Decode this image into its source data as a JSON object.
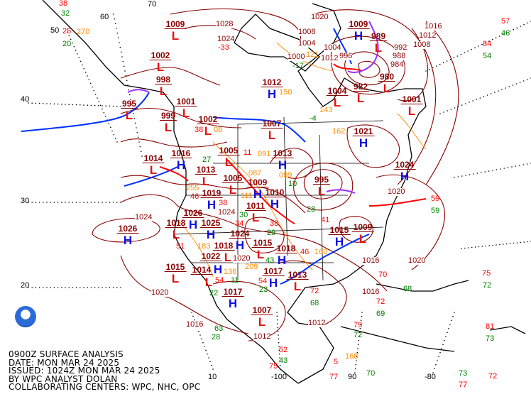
{
  "caption": {
    "line1": "0900Z SURFACE ANALYSIS",
    "line2": "DATE: MON MAR 24 2025",
    "line3": "ISSUED: 1024Z MON MAR 24 2025",
    "line4": "BY WPC ANALYST DOLAN",
    "line5": "COLLABORATING CENTERS: WPC, NHC, OPC"
  },
  "logo": {
    "text": "NOAA"
  },
  "colors": {
    "isobar": "#8b0000",
    "high": "#1010e0",
    "low": "#e81010",
    "cold_front": "#0030ff",
    "warm_front": "#ff0000",
    "occluded_front": "#9b30ff",
    "temperature": "#ff0000",
    "dewpoint": "#008000",
    "pressure_tendency": "#ff8c00"
  },
  "grid_labels": {
    "lat50": "50",
    "lat40": "40",
    "lat30": "30",
    "lat20": "20",
    "lat60": "60",
    "lat70": "70",
    "lon10": "10",
    "lon100": "-100",
    "lon90": "90",
    "lon80": "-80"
  },
  "centers": [
    {
      "type": "H",
      "value": "1026"
    },
    {
      "type": "L",
      "value": "1014"
    },
    {
      "type": "L",
      "value": "995"
    },
    {
      "type": "L",
      "value": "998"
    },
    {
      "type": "L",
      "value": "1001"
    },
    {
      "type": "L",
      "value": "999"
    },
    {
      "type": "L",
      "value": "1002"
    },
    {
      "type": "L",
      "value": "1005"
    },
    {
      "type": "L",
      "value": "1005"
    },
    {
      "type": "H",
      "value": "1009"
    },
    {
      "type": "H",
      "value": "1013"
    },
    {
      "type": "L",
      "value": "1013"
    },
    {
      "type": "H",
      "value": "1016"
    },
    {
      "type": "L",
      "value": "1011"
    },
    {
      "type": "H",
      "value": "1010"
    },
    {
      "type": "H",
      "value": "1026"
    },
    {
      "type": "L",
      "value": "1018"
    },
    {
      "type": "H",
      "value": "1025"
    },
    {
      "type": "H",
      "value": "1024"
    },
    {
      "type": "L",
      "value": "1018"
    },
    {
      "type": "H",
      "value": "1022"
    },
    {
      "type": "L",
      "value": "1015"
    },
    {
      "type": "H",
      "value": "1018"
    },
    {
      "type": "H",
      "value": "1017"
    },
    {
      "type": "L",
      "value": "1013"
    },
    {
      "type": "L",
      "value": "1015"
    },
    {
      "type": "L",
      "value": "1014"
    },
    {
      "type": "H",
      "value": "1017"
    },
    {
      "type": "L",
      "value": "1007"
    },
    {
      "type": "H",
      "value": "1015"
    },
    {
      "type": "L",
      "value": "1009"
    },
    {
      "type": "L",
      "value": "995"
    },
    {
      "type": "H",
      "value": "1021"
    },
    {
      "type": "H",
      "value": "1024"
    },
    {
      "type": "L",
      "value": "1001"
    },
    {
      "type": "L",
      "value": "989"
    },
    {
      "type": "L",
      "value": "980"
    },
    {
      "type": "L",
      "value": "982"
    },
    {
      "type": "H",
      "value": "1009"
    },
    {
      "type": "L",
      "value": "1004"
    },
    {
      "type": "H",
      "value": "1012"
    },
    {
      "type": "L",
      "value": "1009"
    },
    {
      "type": "L",
      "value": "1002"
    },
    {
      "type": "L",
      "value": "1007"
    },
    {
      "type": "H",
      "value": "1019"
    }
  ],
  "isobar_labels": [
    "1028",
    "1024",
    "1020",
    "1016",
    "1012",
    "1008",
    "1024",
    "1020",
    "1016",
    "1012",
    "1016",
    "1020",
    "1012",
    "1004",
    "1000",
    "996",
    "992",
    "988",
    "984",
    "1008",
    "1004",
    "1012",
    "1024",
    "1020",
    "1016",
    "1020"
  ],
  "station_obs": [
    {
      "value": "38",
      "kind": "temperature"
    },
    {
      "value": "32",
      "kind": "dewpoint"
    },
    {
      "value": "25",
      "kind": "temperature"
    },
    {
      "value": "270",
      "kind": "pressure_tendency"
    },
    {
      "value": "20",
      "kind": "dewpoint"
    },
    {
      "value": "57",
      "kind": "temperature"
    },
    {
      "value": "46",
      "kind": "dewpoint"
    },
    {
      "value": "84",
      "kind": "temperature"
    },
    {
      "value": "54",
      "kind": "dewpoint"
    },
    {
      "value": "-33",
      "kind": "temperature"
    },
    {
      "value": "121",
      "kind": "pressure_tendency"
    },
    {
      "value": "-17",
      "kind": "dewpoint"
    },
    {
      "value": "150",
      "kind": "pressure_tendency"
    },
    {
      "value": "162",
      "kind": "pressure_tendency"
    },
    {
      "value": "-4",
      "kind": "dewpoint"
    },
    {
      "value": "143",
      "kind": "pressure_tendency"
    },
    {
      "value": "59",
      "kind": "temperature"
    },
    {
      "value": "59",
      "kind": "dewpoint"
    },
    {
      "value": "27",
      "kind": "dewpoint"
    },
    {
      "value": "38",
      "kind": "temperature"
    },
    {
      "value": "08",
      "kind": "pressure_tendency"
    },
    {
      "value": "11",
      "kind": "temperature"
    },
    {
      "value": "091",
      "kind": "pressure_tendency"
    },
    {
      "value": "087",
      "kind": "pressure_tendency"
    },
    {
      "value": "099",
      "kind": "pressure_tendency"
    },
    {
      "value": "10",
      "kind": "dewpoint"
    },
    {
      "value": "46",
      "kind": "temperature"
    },
    {
      "value": "255",
      "kind": "pressure_tendency"
    },
    {
      "value": "38",
      "kind": "temperature"
    },
    {
      "value": "111",
      "kind": "pressure_tendency"
    },
    {
      "value": "30",
      "kind": "dewpoint"
    },
    {
      "value": "34",
      "kind": "temperature"
    },
    {
      "value": "38",
      "kind": "temperature"
    },
    {
      "value": "29",
      "kind": "dewpoint"
    },
    {
      "value": "28",
      "kind": "dewpoint"
    },
    {
      "value": "41",
      "kind": "temperature"
    },
    {
      "value": "46",
      "kind": "temperature"
    },
    {
      "value": "160",
      "kind": "pressure_tendency"
    },
    {
      "value": "43",
      "kind": "dewpoint"
    },
    {
      "value": "54",
      "kind": "temperature"
    },
    {
      "value": "136",
      "kind": "pressure_tendency"
    },
    {
      "value": "209",
      "kind": "pressure_tendency"
    },
    {
      "value": "11",
      "kind": "dewpoint"
    },
    {
      "value": "51",
      "kind": "temperature"
    },
    {
      "value": "183",
      "kind": "pressure_tendency"
    },
    {
      "value": "54",
      "kind": "temperature"
    },
    {
      "value": "22",
      "kind": "dewpoint"
    },
    {
      "value": "28",
      "kind": "dewpoint"
    },
    {
      "value": "23",
      "kind": "dewpoint"
    },
    {
      "value": "72",
      "kind": "temperature"
    },
    {
      "value": "68",
      "kind": "dewpoint"
    },
    {
      "value": "79",
      "kind": "temperature"
    },
    {
      "value": "72",
      "kind": "dewpoint"
    },
    {
      "value": "52",
      "kind": "temperature"
    },
    {
      "value": "43",
      "kind": "dewpoint"
    },
    {
      "value": "75",
      "kind": "temperature"
    },
    {
      "value": "77",
      "kind": "temperature"
    },
    {
      "value": "70",
      "kind": "dewpoint"
    },
    {
      "value": "70",
      "kind": "temperature"
    },
    {
      "value": "72",
      "kind": "temperature"
    },
    {
      "value": "75",
      "kind": "temperature"
    },
    {
      "value": "72",
      "kind": "dewpoint"
    },
    {
      "value": "81",
      "kind": "temperature"
    },
    {
      "value": "73",
      "kind": "dewpoint"
    },
    {
      "value": "77",
      "kind": "temperature"
    },
    {
      "value": "73",
      "kind": "dewpoint"
    },
    {
      "value": "72",
      "kind": "temperature"
    },
    {
      "value": "69",
      "kind": "dewpoint"
    },
    {
      "value": "68",
      "kind": "dewpoint"
    },
    {
      "value": "63",
      "kind": "dewpoint"
    },
    {
      "value": "5",
      "kind": "temperature"
    },
    {
      "value": "168",
      "kind": "pressure_tendency"
    }
  ]
}
